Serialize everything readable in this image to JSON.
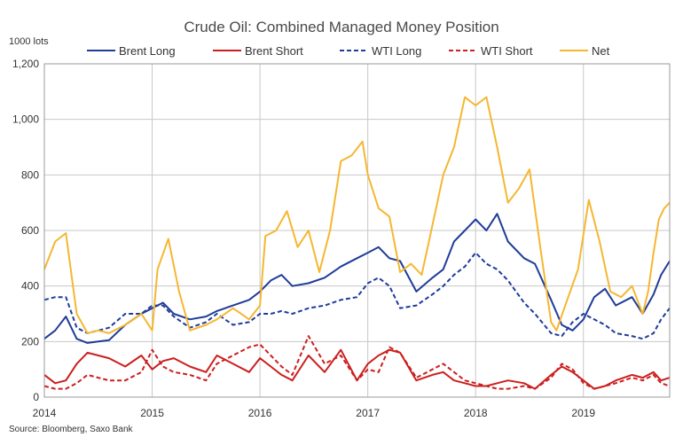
{
  "chart_data": {
    "type": "line",
    "title": "Crude Oil: Combined Managed Money Position",
    "ylabel": "1000 lots",
    "source": "Source: Bloomberg, Saxo Bank",
    "ylim": [
      0,
      1200
    ],
    "xlim": [
      2014.0,
      2019.8
    ],
    "y_ticks": [
      "0",
      "200",
      "400",
      "600",
      "800",
      "1,000",
      "1,200"
    ],
    "x_ticks": [
      "2014",
      "2015",
      "2016",
      "2017",
      "2018",
      "2019"
    ],
    "grid": true,
    "legend_position": "top",
    "colors": {
      "Brent Long": "#1f3c99",
      "Brent Short": "#cc1f1f",
      "WTI Long": "#1f3c99",
      "WTI Short": "#cc1f1f",
      "Net": "#f5b731"
    },
    "series": [
      {
        "name": "Brent Long",
        "style": "solid",
        "x": [
          2014.0,
          2014.1,
          2014.2,
          2014.3,
          2014.4,
          2014.5,
          2014.6,
          2014.75,
          2014.9,
          2015.0,
          2015.1,
          2015.2,
          2015.35,
          2015.5,
          2015.6,
          2015.75,
          2015.9,
          2016.0,
          2016.1,
          2016.2,
          2016.3,
          2016.45,
          2016.6,
          2016.75,
          2016.9,
          2017.0,
          2017.1,
          2017.2,
          2017.3,
          2017.45,
          2017.6,
          2017.7,
          2017.8,
          2017.9,
          2018.0,
          2018.1,
          2018.2,
          2018.3,
          2018.45,
          2018.55,
          2018.7,
          2018.8,
          2018.9,
          2019.0,
          2019.1,
          2019.2,
          2019.3,
          2019.45,
          2019.55,
          2019.65,
          2019.72,
          2019.8
        ],
        "y": [
          210,
          240,
          290,
          210,
          195,
          200,
          205,
          260,
          300,
          320,
          340,
          300,
          280,
          290,
          310,
          330,
          350,
          380,
          420,
          440,
          400,
          410,
          430,
          470,
          500,
          520,
          540,
          500,
          490,
          380,
          430,
          460,
          560,
          600,
          640,
          600,
          660,
          560,
          500,
          480,
          350,
          260,
          240,
          280,
          360,
          390,
          330,
          360,
          300,
          370,
          440,
          490
        ]
      },
      {
        "name": "Brent Short",
        "style": "solid",
        "x": [
          2014.0,
          2014.1,
          2014.2,
          2014.3,
          2014.4,
          2014.5,
          2014.6,
          2014.75,
          2014.9,
          2015.0,
          2015.1,
          2015.2,
          2015.35,
          2015.5,
          2015.6,
          2015.75,
          2015.9,
          2016.0,
          2016.1,
          2016.2,
          2016.3,
          2016.45,
          2016.6,
          2016.75,
          2016.9,
          2017.0,
          2017.1,
          2017.2,
          2017.3,
          2017.45,
          2017.6,
          2017.7,
          2017.8,
          2017.9,
          2018.0,
          2018.1,
          2018.2,
          2018.3,
          2018.45,
          2018.55,
          2018.7,
          2018.8,
          2018.9,
          2019.0,
          2019.1,
          2019.2,
          2019.3,
          2019.45,
          2019.55,
          2019.65,
          2019.72,
          2019.8
        ],
        "y": [
          80,
          50,
          60,
          120,
          160,
          150,
          140,
          110,
          150,
          100,
          130,
          140,
          110,
          90,
          150,
          120,
          90,
          140,
          110,
          80,
          60,
          150,
          90,
          170,
          60,
          120,
          150,
          170,
          160,
          60,
          80,
          90,
          60,
          50,
          40,
          40,
          50,
          60,
          50,
          30,
          80,
          110,
          90,
          60,
          30,
          40,
          60,
          80,
          70,
          90,
          60,
          70
        ]
      },
      {
        "name": "WTI Long",
        "style": "dashed",
        "x": [
          2014.0,
          2014.1,
          2014.2,
          2014.3,
          2014.4,
          2014.5,
          2014.6,
          2014.75,
          2014.9,
          2015.0,
          2015.1,
          2015.2,
          2015.35,
          2015.5,
          2015.6,
          2015.75,
          2015.9,
          2016.0,
          2016.1,
          2016.2,
          2016.3,
          2016.45,
          2016.6,
          2016.75,
          2016.9,
          2017.0,
          2017.1,
          2017.2,
          2017.3,
          2017.45,
          2017.6,
          2017.7,
          2017.8,
          2017.9,
          2018.0,
          2018.1,
          2018.2,
          2018.3,
          2018.45,
          2018.55,
          2018.7,
          2018.8,
          2018.9,
          2019.0,
          2019.1,
          2019.2,
          2019.3,
          2019.45,
          2019.55,
          2019.65,
          2019.72,
          2019.8
        ],
        "y": [
          350,
          360,
          360,
          250,
          230,
          240,
          250,
          300,
          300,
          330,
          330,
          290,
          250,
          270,
          300,
          260,
          270,
          300,
          300,
          310,
          300,
          320,
          330,
          350,
          360,
          410,
          430,
          400,
          320,
          330,
          370,
          400,
          440,
          470,
          520,
          480,
          460,
          420,
          340,
          300,
          230,
          220,
          270,
          300,
          280,
          260,
          230,
          220,
          210,
          230,
          280,
          320
        ]
      },
      {
        "name": "WTI Short",
        "style": "dashed",
        "x": [
          2014.0,
          2014.1,
          2014.2,
          2014.3,
          2014.4,
          2014.5,
          2014.6,
          2014.75,
          2014.9,
          2015.0,
          2015.1,
          2015.2,
          2015.35,
          2015.5,
          2015.6,
          2015.75,
          2015.9,
          2016.0,
          2016.1,
          2016.2,
          2016.3,
          2016.45,
          2016.6,
          2016.75,
          2016.9,
          2017.0,
          2017.1,
          2017.2,
          2017.3,
          2017.45,
          2017.6,
          2017.7,
          2017.8,
          2017.9,
          2018.0,
          2018.1,
          2018.2,
          2018.3,
          2018.45,
          2018.55,
          2018.7,
          2018.8,
          2018.9,
          2019.0,
          2019.1,
          2019.2,
          2019.3,
          2019.45,
          2019.55,
          2019.65,
          2019.72,
          2019.8
        ],
        "y": [
          40,
          30,
          30,
          50,
          80,
          70,
          60,
          60,
          90,
          170,
          110,
          90,
          80,
          60,
          120,
          150,
          180,
          190,
          150,
          110,
          80,
          220,
          120,
          150,
          60,
          100,
          90,
          180,
          160,
          70,
          100,
          120,
          90,
          60,
          50,
          40,
          30,
          30,
          40,
          30,
          70,
          120,
          100,
          50,
          30,
          40,
          50,
          70,
          60,
          80,
          50,
          40
        ]
      },
      {
        "name": "Net",
        "style": "solid",
        "x": [
          2014.0,
          2014.1,
          2014.2,
          2014.3,
          2014.4,
          2014.5,
          2014.6,
          2014.75,
          2014.9,
          2015.0,
          2015.05,
          2015.15,
          2015.25,
          2015.35,
          2015.5,
          2015.6,
          2015.75,
          2015.9,
          2016.0,
          2016.05,
          2016.15,
          2016.25,
          2016.35,
          2016.45,
          2016.55,
          2016.65,
          2016.75,
          2016.85,
          2016.95,
          2017.0,
          2017.1,
          2017.2,
          2017.3,
          2017.4,
          2017.5,
          2017.6,
          2017.7,
          2017.8,
          2017.9,
          2018.0,
          2018.1,
          2018.2,
          2018.3,
          2018.4,
          2018.5,
          2018.6,
          2018.7,
          2018.75,
          2018.85,
          2018.95,
          2019.05,
          2019.15,
          2019.25,
          2019.35,
          2019.45,
          2019.55,
          2019.6,
          2019.65,
          2019.7,
          2019.75,
          2019.8
        ],
        "y": [
          460,
          560,
          590,
          300,
          230,
          240,
          230,
          260,
          300,
          240,
          460,
          570,
          380,
          240,
          260,
          280,
          320,
          280,
          330,
          580,
          600,
          670,
          540,
          600,
          450,
          600,
          850,
          870,
          920,
          800,
          680,
          650,
          450,
          480,
          440,
          620,
          800,
          900,
          1080,
          1050,
          1080,
          900,
          700,
          750,
          820,
          540,
          270,
          240,
          350,
          460,
          710,
          560,
          380,
          360,
          400,
          300,
          380,
          520,
          640,
          680,
          700
        ]
      }
    ]
  }
}
